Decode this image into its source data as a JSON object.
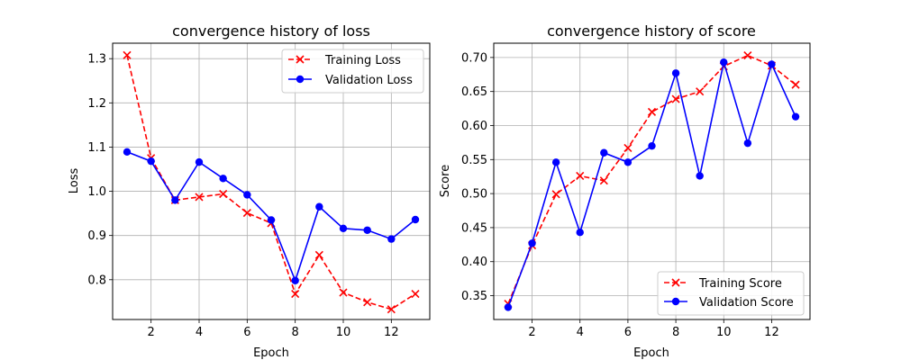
{
  "chart_data": [
    {
      "type": "line",
      "title": "convergence history of loss",
      "xlabel": "Epoch",
      "ylabel": "Loss",
      "x": [
        1,
        2,
        3,
        4,
        5,
        6,
        7,
        8,
        9,
        10,
        11,
        12,
        13
      ],
      "xlim": [
        0.4,
        13.6
      ],
      "ylim": [
        0.71,
        1.335
      ],
      "xticks": [
        2,
        4,
        6,
        8,
        10,
        12
      ],
      "yticks": [
        0.8,
        0.9,
        1.0,
        1.1,
        1.2,
        1.3
      ],
      "ytick_labels": [
        "0.8",
        "0.9",
        "1.0",
        "1.1",
        "1.2",
        "1.3"
      ],
      "grid": true,
      "legend_position": "top-right",
      "series": [
        {
          "name": "Training Loss",
          "color": "#ff0000",
          "linestyle": "dashed",
          "marker": "x",
          "values": [
            1.308,
            1.075,
            0.98,
            0.987,
            0.994,
            0.951,
            0.928,
            0.768,
            0.856,
            0.771,
            0.749,
            0.733,
            0.768
          ]
        },
        {
          "name": "Validation Loss",
          "color": "#0000ff",
          "linestyle": "solid",
          "marker": "o",
          "values": [
            1.089,
            1.068,
            0.98,
            1.066,
            1.029,
            0.992,
            0.935,
            0.798,
            0.965,
            0.916,
            0.912,
            0.892,
            0.936
          ]
        }
      ]
    },
    {
      "type": "line",
      "title": "convergence history of score",
      "xlabel": "Epoch",
      "ylabel": "Score",
      "x": [
        1,
        2,
        3,
        4,
        5,
        6,
        7,
        8,
        9,
        10,
        11,
        12,
        13
      ],
      "xlim": [
        0.4,
        13.6
      ],
      "ylim": [
        0.315,
        0.721
      ],
      "xticks": [
        2,
        4,
        6,
        8,
        10,
        12
      ],
      "yticks": [
        0.35,
        0.4,
        0.45,
        0.5,
        0.55,
        0.6,
        0.65,
        0.7
      ],
      "ytick_labels": [
        "0.35",
        "0.40",
        "0.45",
        "0.50",
        "0.55",
        "0.60",
        "0.65",
        "0.70"
      ],
      "grid": true,
      "legend_position": "bottom-right",
      "series": [
        {
          "name": "Training Score",
          "color": "#ff0000",
          "linestyle": "dashed",
          "marker": "x",
          "values": [
            0.338,
            0.424,
            0.499,
            0.526,
            0.519,
            0.567,
            0.62,
            0.639,
            0.65,
            0.687,
            0.703,
            0.688,
            0.66
          ]
        },
        {
          "name": "Validation Score",
          "color": "#0000ff",
          "linestyle": "solid",
          "marker": "o",
          "values": [
            0.333,
            0.427,
            0.546,
            0.443,
            0.56,
            0.546,
            0.57,
            0.677,
            0.526,
            0.693,
            0.574,
            0.69,
            0.613
          ]
        }
      ]
    }
  ]
}
